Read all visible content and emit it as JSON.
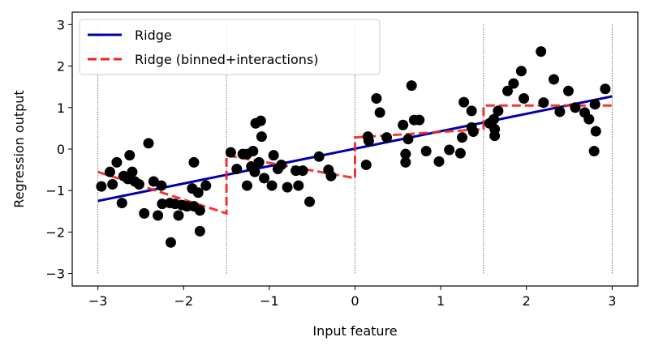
{
  "chart_data": {
    "type": "line",
    "title": "",
    "xlabel": "Input feature",
    "ylabel": "Regression output",
    "xlim": [
      -3.3,
      3.3
    ],
    "ylim": [
      -3.3,
      3.3
    ],
    "xticks": [
      -3,
      -2,
      -1,
      0,
      1,
      2,
      3
    ],
    "yticks": [
      -3,
      -2,
      -1,
      0,
      1,
      2,
      3
    ],
    "xtick_labels": [
      "−3",
      "−2",
      "−1",
      "0",
      "1",
      "2",
      "3"
    ],
    "ytick_labels": [
      "−3",
      "−2",
      "−1",
      "0",
      "1",
      "2",
      "3"
    ],
    "grid": false,
    "legend_position": "top-left",
    "bin_edges": [
      -3,
      -1.5,
      0,
      1.5,
      3
    ],
    "series": [
      {
        "name": "Ridge",
        "kind": "line",
        "color": "#0000aa",
        "style": "solid",
        "x": [
          -3,
          3
        ],
        "y": [
          -1.25,
          1.27
        ]
      },
      {
        "name": "Ridge (binned+interactions)",
        "kind": "line",
        "color": "#ee2222",
        "style": "dashed",
        "segments": [
          {
            "x": [
              -3,
              -1.5
            ],
            "y": [
              -0.55,
              -1.55
            ]
          },
          {
            "x": [
              -1.5,
              0
            ],
            "y": [
              -0.15,
              -0.7
            ]
          },
          {
            "x": [
              0,
              1.5
            ],
            "y": [
              0.28,
              0.48
            ]
          },
          {
            "x": [
              1.5,
              3
            ],
            "y": [
              1.05,
              1.05
            ]
          }
        ]
      },
      {
        "name": "data",
        "kind": "scatter",
        "color": "#000000",
        "points": [
          [
            -2.96,
            -0.9
          ],
          [
            -2.86,
            -0.55
          ],
          [
            -2.83,
            -0.85
          ],
          [
            -2.78,
            -0.32
          ],
          [
            -2.72,
            -1.3
          ],
          [
            -2.7,
            -0.65
          ],
          [
            -2.65,
            -0.72
          ],
          [
            -2.63,
            -0.15
          ],
          [
            -2.6,
            -0.55
          ],
          [
            -2.57,
            -0.78
          ],
          [
            -2.52,
            -0.85
          ],
          [
            -2.46,
            -1.55
          ],
          [
            -2.41,
            0.14
          ],
          [
            -2.35,
            -0.78
          ],
          [
            -2.3,
            -1.6
          ],
          [
            -2.26,
            -0.88
          ],
          [
            -2.25,
            -1.32
          ],
          [
            -2.16,
            -1.3
          ],
          [
            -2.15,
            -2.25
          ],
          [
            -2.1,
            -1.32
          ],
          [
            -2.06,
            -1.6
          ],
          [
            -2.02,
            -1.35
          ],
          [
            -1.96,
            -1.38
          ],
          [
            -1.9,
            -0.95
          ],
          [
            -1.88,
            -1.38
          ],
          [
            -1.88,
            -0.32
          ],
          [
            -1.83,
            -1.05
          ],
          [
            -1.81,
            -1.48
          ],
          [
            -1.81,
            -1.98
          ],
          [
            -1.74,
            -0.88
          ],
          [
            -1.45,
            -0.08
          ],
          [
            -1.38,
            -0.48
          ],
          [
            -1.31,
            -0.12
          ],
          [
            -1.26,
            -0.88
          ],
          [
            -1.26,
            -0.12
          ],
          [
            -1.21,
            -0.42
          ],
          [
            -1.19,
            -0.05
          ],
          [
            -1.17,
            -0.55
          ],
          [
            -1.16,
            0.62
          ],
          [
            -1.12,
            -0.32
          ],
          [
            -1.1,
            0.68
          ],
          [
            -1.09,
            0.3
          ],
          [
            -1.06,
            -0.7
          ],
          [
            -0.97,
            -0.88
          ],
          [
            -0.95,
            -0.15
          ],
          [
            -0.9,
            -0.48
          ],
          [
            -0.86,
            -0.38
          ],
          [
            -0.79,
            -0.92
          ],
          [
            -0.69,
            -0.52
          ],
          [
            -0.66,
            -0.88
          ],
          [
            -0.61,
            -0.52
          ],
          [
            -0.53,
            -1.27
          ],
          [
            -0.42,
            -0.18
          ],
          [
            -0.31,
            -0.5
          ],
          [
            -0.28,
            -0.65
          ],
          [
            0.13,
            -0.38
          ],
          [
            0.15,
            0.3
          ],
          [
            0.16,
            0.2
          ],
          [
            0.25,
            1.22
          ],
          [
            0.29,
            0.88
          ],
          [
            0.37,
            0.28
          ],
          [
            0.56,
            0.58
          ],
          [
            0.59,
            -0.12
          ],
          [
            0.59,
            -0.32
          ],
          [
            0.62,
            0.24
          ],
          [
            0.66,
            1.53
          ],
          [
            0.69,
            0.7
          ],
          [
            0.75,
            0.7
          ],
          [
            0.83,
            -0.05
          ],
          [
            0.98,
            -0.3
          ],
          [
            1.1,
            -0.02
          ],
          [
            1.23,
            -0.1
          ],
          [
            1.25,
            0.28
          ],
          [
            1.27,
            1.13
          ],
          [
            1.36,
            0.92
          ],
          [
            1.36,
            0.52
          ],
          [
            1.38,
            0.42
          ],
          [
            1.57,
            0.62
          ],
          [
            1.62,
            0.72
          ],
          [
            1.63,
            0.48
          ],
          [
            1.63,
            0.32
          ],
          [
            1.67,
            0.92
          ],
          [
            1.78,
            1.4
          ],
          [
            1.85,
            1.58
          ],
          [
            1.94,
            1.88
          ],
          [
            1.97,
            1.22
          ],
          [
            2.17,
            2.35
          ],
          [
            2.2,
            1.12
          ],
          [
            2.32,
            1.68
          ],
          [
            2.39,
            0.9
          ],
          [
            2.49,
            1.4
          ],
          [
            2.57,
            1.0
          ],
          [
            2.68,
            0.88
          ],
          [
            2.73,
            0.72
          ],
          [
            2.79,
            -0.05
          ],
          [
            2.8,
            1.08
          ],
          [
            2.81,
            0.43
          ],
          [
            2.92,
            1.45
          ]
        ]
      }
    ]
  }
}
